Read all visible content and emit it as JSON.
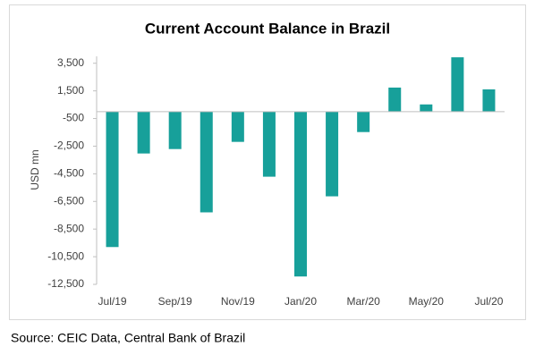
{
  "chart_data": {
    "type": "bar",
    "title": "Current Account Balance in Brazil",
    "y_label": "USD mn",
    "source": "Source: CEIC Data, Central Bank of Brazil",
    "categories": [
      "Jul/19",
      null,
      "Sep/19",
      null,
      "Nov/19",
      null,
      "Jan/20",
      null,
      "Mar/20",
      null,
      "May/20",
      null,
      "Jul/20"
    ],
    "values": [
      -9800,
      -3030,
      -2710,
      -7290,
      -2190,
      -4710,
      -11930,
      -6130,
      -1480,
      1740,
      520,
      3930,
      1610
    ],
    "color": "#17a09a",
    "ylim": [
      -12500,
      4000
    ],
    "yticks": [
      {
        "value": -12500,
        "label": "-12,500"
      },
      {
        "value": -10500,
        "label": "-10,500"
      },
      {
        "value": -8500,
        "label": "-8,500"
      },
      {
        "value": -6500,
        "label": "-6,500"
      },
      {
        "value": -4500,
        "label": "-4,500"
      },
      {
        "value": -2500,
        "label": "-2,500"
      },
      -500,
      {
        "value": 1500,
        "label": "1,500"
      },
      {
        "value": 3500,
        "label": "3,500"
      }
    ],
    "grid": false
  }
}
